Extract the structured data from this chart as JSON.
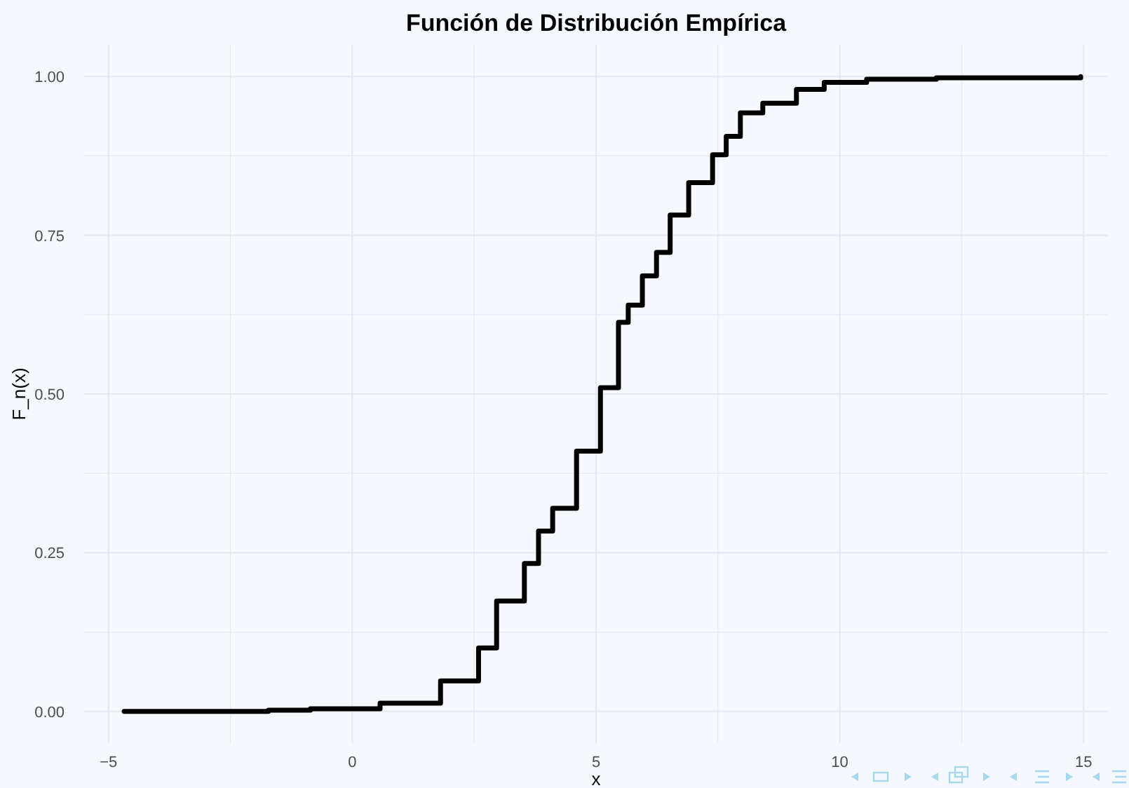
{
  "chart_data": {
    "type": "step",
    "title": "Función de Distribución Empírica",
    "xlabel": "x",
    "ylabel": "F_n(x)",
    "x": [
      -4.68,
      -1.72,
      -0.86,
      0.57,
      1.81,
      2.59,
      2.96,
      3.53,
      3.82,
      4.11,
      4.6,
      5.09,
      5.46,
      5.66,
      5.95,
      6.24,
      6.52,
      6.9,
      7.39,
      7.67,
      7.96,
      8.42,
      9.11,
      9.68,
      10.55,
      11.98,
      14.94
    ],
    "series": [
      {
        "color": "#000000",
        "values": [
          0,
          0.002,
          0.004,
          0.013,
          0.048,
          0.1,
          0.174,
          0.233,
          0.284,
          0.32,
          0.41,
          0.51,
          0.613,
          0.64,
          0.686,
          0.723,
          0.782,
          0.833,
          0.877,
          0.906,
          0.943,
          0.958,
          0.98,
          0.991,
          0.996,
          0.998,
          1
        ]
      }
    ],
    "xlim": [
      -5.5,
      15.5
    ],
    "xticks": [
      {
        "value": -5,
        "label": "−5"
      },
      0,
      5,
      10,
      15
    ],
    "ylim": [
      -0.05,
      1.05
    ],
    "yticks": [
      {
        "value": 0,
        "label": "0.00"
      },
      {
        "value": 0.25,
        "label": "0.25"
      },
      {
        "value": 0.5,
        "label": "0.50"
      },
      {
        "value": 0.75,
        "label": "0.75"
      },
      {
        "value": 1,
        "label": "1.00"
      }
    ],
    "grid": true
  }
}
